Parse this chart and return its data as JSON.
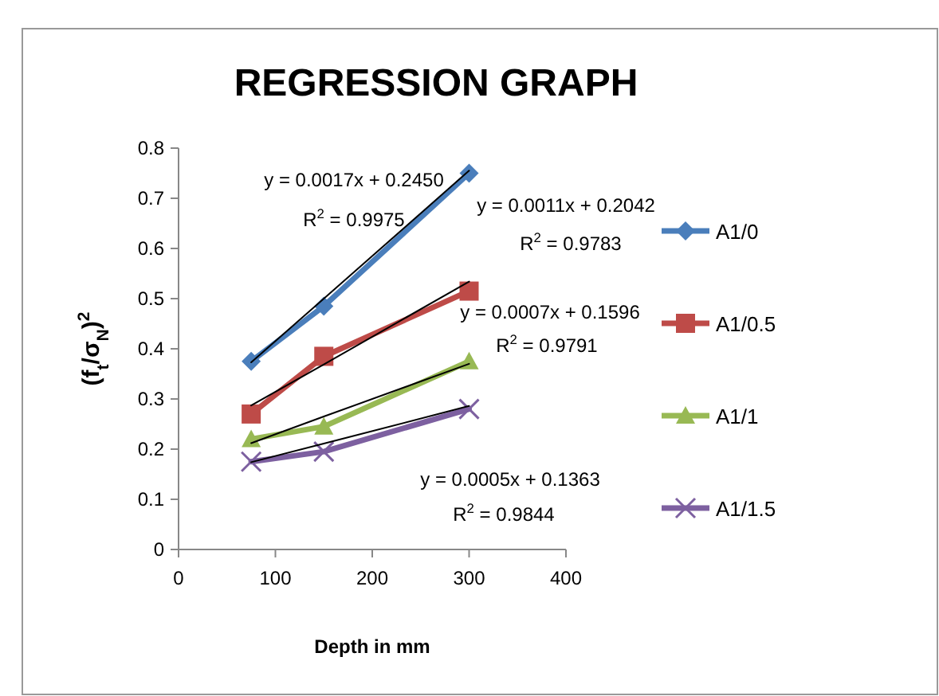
{
  "chart_data": {
    "type": "line",
    "title": "REGRESSION GRAPH",
    "xlabel": "Depth in mm",
    "ylabel": "(f$_{t}$/σ$_{N}$)$^{2}$",
    "x": [
      75,
      150,
      300
    ],
    "series": [
      {
        "name": "A1/0",
        "color": "#4a7ebb",
        "marker": "diamond",
        "values": [
          0.375,
          0.485,
          0.75
        ]
      },
      {
        "name": "A1/0.5",
        "color": "#be4b48",
        "marker": "square",
        "values": [
          0.27,
          0.385,
          0.515
        ]
      },
      {
        "name": "A1/1",
        "color": "#98b954",
        "marker": "triangle",
        "values": [
          0.22,
          0.245,
          0.375
        ]
      },
      {
        "name": "A1/1.5",
        "color": "#7d60a0",
        "marker": "cross",
        "values": [
          0.175,
          0.195,
          0.28
        ]
      },
      {
        "type": "line",
        "color": "#000000",
        "marker": "none",
        "values": [
          0.373,
          0.5,
          0.755
        ]
      },
      {
        "type": "line",
        "color": "#000000",
        "marker": "none",
        "values": [
          0.287,
          0.369,
          0.534
        ]
      },
      {
        "type": "line",
        "color": "#000000",
        "marker": "none",
        "values": [
          0.212,
          0.265,
          0.37
        ]
      },
      {
        "type": "line",
        "color": "#000000",
        "marker": "none",
        "values": [
          0.174,
          0.211,
          0.286
        ]
      }
    ],
    "annotations": [
      "y = 0.0017x + 0.2450",
      "R$^{2}$ = 0.9975",
      "y = 0.0011x + 0.2042",
      "R$^{2}$ = 0.9783",
      "y = 0.0007x + 0.1596",
      "R$^{2}$ = 0.9791",
      "y = 0.0005x + 0.1363",
      "R$^{2}$ = 0.9844"
    ],
    "xlim": [
      0,
      400
    ],
    "xticks": [
      0,
      100,
      200,
      300,
      400
    ],
    "ylim": [
      0,
      0.8
    ],
    "yticks": [
      0,
      0.1,
      0.2,
      0.3,
      0.4,
      0.5,
      0.6,
      0.7,
      0.8
    ],
    "grid": false,
    "legend": "right",
    "line_style": "solid"
  }
}
